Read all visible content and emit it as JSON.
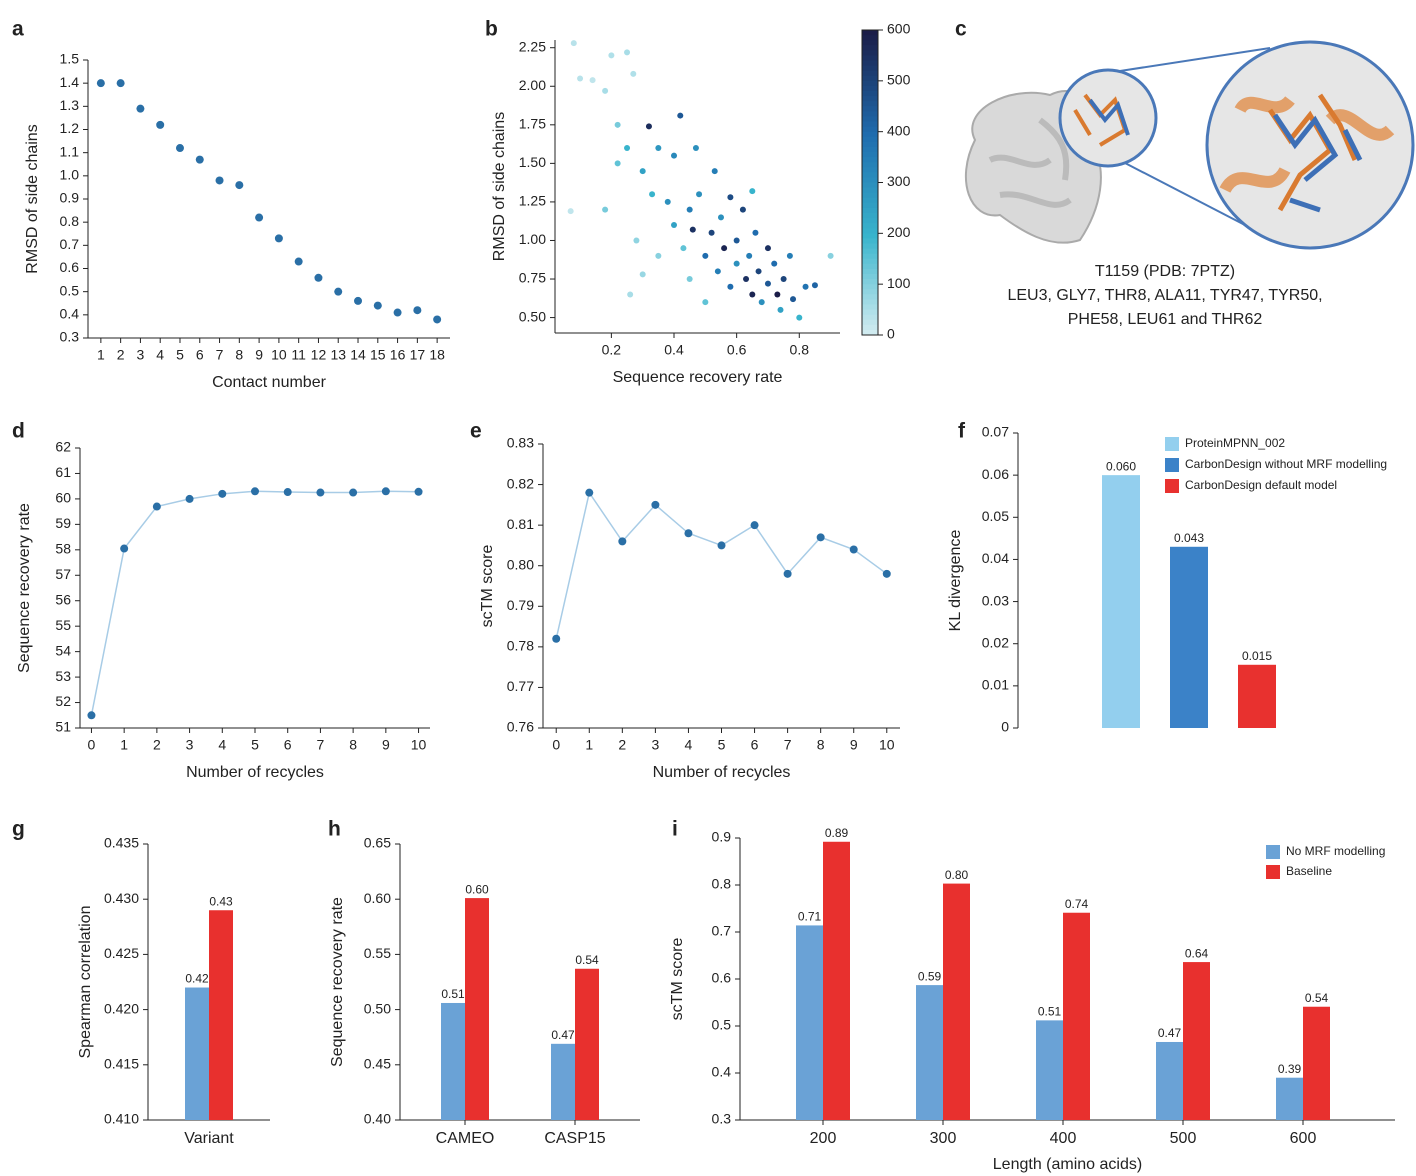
{
  "chart_data": [
    {
      "type": "scatter",
      "panel": "a",
      "x_label": "Contact number",
      "y_label": "RMSD of side chains",
      "x": [
        1,
        2,
        3,
        4,
        5,
        6,
        7,
        8,
        9,
        10,
        11,
        12,
        13,
        14,
        15,
        16,
        17,
        18
      ],
      "values": [
        1.4,
        1.4,
        1.29,
        1.22,
        1.12,
        1.07,
        0.98,
        0.96,
        0.82,
        0.73,
        0.63,
        0.56,
        0.5,
        0.46,
        0.44,
        0.41,
        0.42,
        0.38
      ],
      "color": "#2a6fa6",
      "xlim": [
        0.35,
        18.65
      ],
      "xticks": [
        1,
        2,
        3,
        4,
        5,
        6,
        7,
        8,
        9,
        10,
        11,
        12,
        13,
        14,
        15,
        16,
        17,
        18
      ],
      "ylim": [
        0.3,
        1.5
      ],
      "yticks": [
        0.3,
        0.4,
        0.5,
        0.6,
        0.7,
        0.8,
        0.9,
        {
          "value": 1,
          "label": "1.0"
        },
        1.1,
        1.2,
        1.3,
        1.4,
        1.5
      ]
    },
    {
      "type": "scatter",
      "panel": "b",
      "x_label": "Sequence recovery rate",
      "y_label": "RMSD of side chains",
      "x": [
        0.07,
        0.08,
        0.1,
        0.14,
        0.18,
        0.2,
        0.22,
        0.25,
        0.27,
        0.22,
        0.25,
        0.3,
        0.32,
        0.33,
        0.35,
        0.38,
        0.4,
        0.42,
        0.45,
        0.43,
        0.46,
        0.48,
        0.5,
        0.52,
        0.54,
        0.55,
        0.56,
        0.58,
        0.6,
        0.6,
        0.62,
        0.63,
        0.64,
        0.65,
        0.66,
        0.67,
        0.68,
        0.7,
        0.7,
        0.72,
        0.73,
        0.74,
        0.75,
        0.77,
        0.78,
        0.8,
        0.82,
        0.85,
        0.9,
        0.3,
        0.26,
        0.35,
        0.4,
        0.47,
        0.53,
        0.58,
        0.65,
        0.28,
        0.18,
        0.5,
        0.45
      ],
      "values": [
        1.19,
        2.28,
        2.05,
        2.04,
        1.97,
        2.2,
        1.75,
        2.22,
        2.08,
        1.5,
        1.6,
        1.45,
        1.74,
        1.3,
        1.6,
        1.25,
        1.1,
        1.81,
        1.2,
        0.95,
        1.07,
        1.3,
        0.9,
        1.05,
        0.8,
        1.15,
        0.95,
        0.7,
        1.0,
        0.85,
        1.2,
        0.75,
        0.9,
        0.65,
        1.05,
        0.8,
        0.6,
        0.95,
        0.72,
        0.85,
        0.65,
        0.55,
        0.75,
        0.9,
        0.62,
        0.5,
        0.7,
        0.71,
        0.9,
        0.78,
        0.65,
        0.9,
        1.55,
        1.6,
        1.45,
        1.28,
        1.32,
        1.0,
        1.2,
        0.6,
        0.75
      ],
      "color_values": [
        30,
        40,
        40,
        30,
        60,
        50,
        120,
        60,
        50,
        150,
        200,
        250,
        560,
        200,
        280,
        300,
        250,
        450,
        350,
        150,
        550,
        300,
        400,
        500,
        350,
        300,
        580,
        400,
        450,
        300,
        500,
        550,
        350,
        580,
        400,
        500,
        300,
        550,
        450,
        400,
        600,
        250,
        500,
        350,
        450,
        200,
        380,
        420,
        100,
        80,
        60,
        100,
        320,
        300,
        350,
        480,
        200,
        90,
        120,
        150,
        120
      ],
      "colormap": [
        "#d8eef2",
        "#38b4cc",
        "#1f6cae",
        "#1b1d48"
      ],
      "xlim": [
        0.02,
        0.93
      ],
      "xticks": [
        0.2,
        0.4,
        0.6,
        0.8
      ],
      "ylim": [
        0.4,
        2.3
      ],
      "yticks": [
        {
          "value": 0.5,
          "label": "0.50"
        },
        0.75,
        {
          "value": 1,
          "label": "1.00"
        },
        1.25,
        {
          "value": 1.5,
          "label": "1.50"
        },
        1.75,
        {
          "value": 2,
          "label": "2.00"
        },
        2.25
      ],
      "clim": [
        0,
        600
      ],
      "cticks": [
        0,
        100,
        200,
        300,
        400,
        500,
        600
      ]
    },
    {
      "type": "image",
      "panel": "c",
      "caption": [
        "T1159 (PDB: 7PTZ)",
        "LEU3, GLY7, THR8, ALA11, TYR47, TYR50,",
        "PHE58, LEU61 and THR62"
      ]
    },
    {
      "type": "line",
      "panel": "d",
      "x_label": "Number of recycles",
      "y_label": "Sequence recovery rate",
      "x": [
        0,
        1,
        2,
        3,
        4,
        5,
        6,
        7,
        8,
        9,
        10
      ],
      "values": [
        51.5,
        58.05,
        59.7,
        60.0,
        60.2,
        60.3,
        60.27,
        60.25,
        60.25,
        60.3,
        60.28
      ],
      "color": "#2a6fa6",
      "line_color": "#a8cce6",
      "xlim": [
        -0.35,
        10.35
      ],
      "xticks": [
        0,
        1,
        2,
        3,
        4,
        5,
        6,
        7,
        8,
        9,
        10
      ],
      "ylim": [
        51,
        62
      ],
      "yticks": [
        51,
        52,
        53,
        54,
        55,
        56,
        57,
        58,
        59,
        60,
        61,
        62
      ]
    },
    {
      "type": "line",
      "panel": "e",
      "x_label": "Number of recycles",
      "y_label": "scTM score",
      "x": [
        0,
        1,
        2,
        3,
        4,
        5,
        6,
        7,
        8,
        9,
        10
      ],
      "values": [
        0.782,
        0.818,
        0.806,
        0.815,
        0.808,
        0.805,
        0.81,
        0.798,
        0.807,
        0.804,
        0.798
      ],
      "color": "#2a6fa6",
      "line_color": "#a8cce6",
      "xlim": [
        -0.4,
        10.4
      ],
      "xticks": [
        0,
        1,
        2,
        3,
        4,
        5,
        6,
        7,
        8,
        9,
        10
      ],
      "ylim": [
        0.76,
        0.83
      ],
      "yticks": [
        0.76,
        0.77,
        0.78,
        0.79,
        {
          "value": 0.8,
          "label": "0.80"
        },
        0.81,
        0.82,
        0.83
      ]
    },
    {
      "type": "bar",
      "panel": "f",
      "y_label": "KL divergence",
      "categories": [
        null
      ],
      "series": [
        {
          "name": "ProteinMPNN_002",
          "color": "#93cfee",
          "values": [
            0.06
          ],
          "value_labels": [
            "0.060"
          ]
        },
        {
          "name": "CarbonDesign without MRF modelling",
          "color": "#3b82c8",
          "values": [
            0.043
          ],
          "value_labels": [
            "0.043"
          ]
        },
        {
          "name": "CarbonDesign default model",
          "color": "#e8312f",
          "values": [
            0.015
          ],
          "value_labels": [
            "0.015"
          ]
        }
      ],
      "ylim": [
        0,
        0.07
      ],
      "yticks": [
        0,
        0.01,
        0.02,
        0.03,
        0.04,
        0.05,
        0.06,
        0.07
      ],
      "legend": "top-right"
    },
    {
      "type": "bar",
      "panel": "g",
      "y_label": "Spearman correlation",
      "categories": [
        "Variant"
      ],
      "series": [
        {
          "color": "#6aa2d6",
          "values": [
            0.422
          ],
          "value_labels": [
            "0.42"
          ]
        },
        {
          "color": "#e8302e",
          "values": [
            0.429
          ],
          "value_labels": [
            "0.43"
          ]
        }
      ],
      "ylim": [
        0.41,
        0.435
      ],
      "yticks": [
        {
          "value": 0.41,
          "label": "0.410"
        },
        0.415,
        {
          "value": 0.42,
          "label": "0.420"
        },
        0.425,
        {
          "value": 0.43,
          "label": "0.430"
        },
        0.435
      ]
    },
    {
      "type": "bar",
      "panel": "h",
      "y_label": "Sequence recovery rate",
      "categories": [
        "CAMEO",
        "CASP15"
      ],
      "series": [
        {
          "color": "#6aa2d6",
          "values": [
            0.506,
            0.469
          ],
          "value_labels": [
            "0.51",
            "0.47"
          ]
        },
        {
          "color": "#e8302e",
          "values": [
            0.601,
            0.537
          ],
          "value_labels": [
            "0.60",
            "0.54"
          ]
        }
      ],
      "ylim": [
        0.4,
        0.65
      ],
      "yticks": [
        {
          "value": 0.4,
          "label": "0.40"
        },
        0.45,
        {
          "value": 0.5,
          "label": "0.50"
        },
        0.55,
        {
          "value": 0.6,
          "label": "0.60"
        },
        0.65
      ]
    },
    {
      "type": "bar",
      "panel": "i",
      "x_label": "Length (amino acids)",
      "y_label": "scTM score",
      "categories": [
        "200",
        "300",
        "400",
        "500",
        "600"
      ],
      "series": [
        {
          "name": "No MRF modelling",
          "color": "#6aa2d6",
          "values": [
            0.714,
            0.587,
            0.512,
            0.466,
            0.39
          ],
          "value_labels": [
            "0.71",
            "0.59",
            "0.51",
            "0.47",
            "0.39"
          ]
        },
        {
          "name": "Baseline",
          "color": "#e8302e",
          "values": [
            0.892,
            0.803,
            0.741,
            0.636,
            0.541
          ],
          "value_labels": [
            "0.89",
            "0.80",
            "0.74",
            "0.64",
            "0.54"
          ]
        }
      ],
      "ylim": [
        0.3,
        0.9
      ],
      "yticks": [
        0.3,
        0.4,
        0.5,
        0.6,
        0.7,
        0.8,
        0.9
      ],
      "legend": "top-right"
    }
  ]
}
